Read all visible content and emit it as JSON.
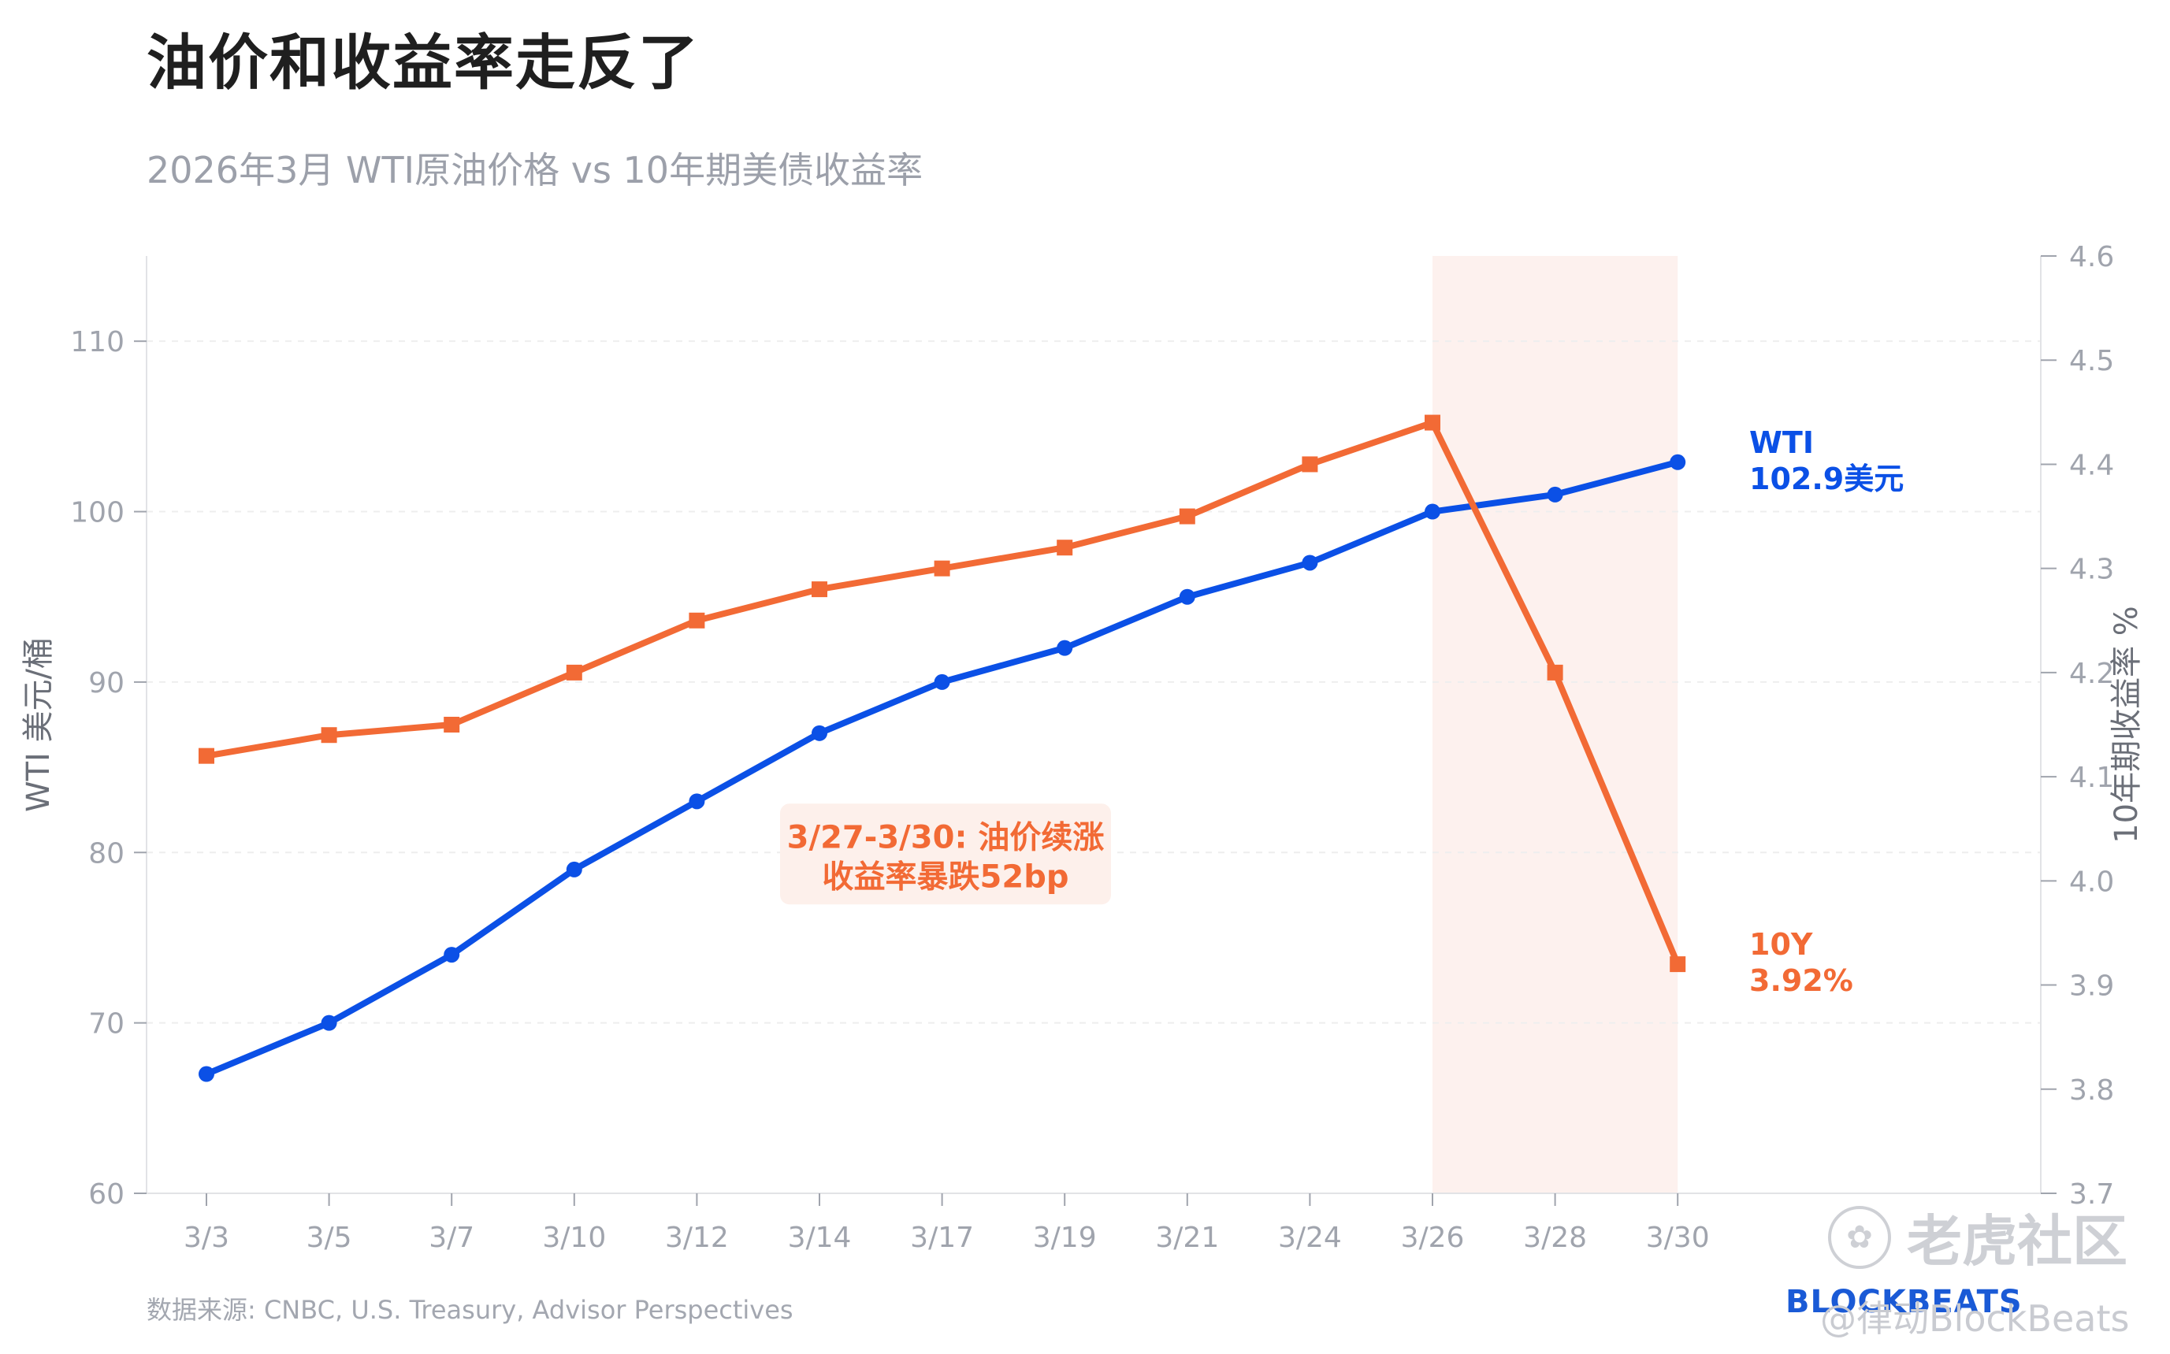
{
  "title": "油价和收益率走反了",
  "subtitle": "2026年3月 WTI原油价格 vs 10年期美债收益率",
  "source": "数据来源: CNBC, U.S. Treasury, Advisor Perspectives",
  "brand": "BLOCKBEATS",
  "watermark": {
    "text": "老虎社区",
    "handle": "@律动BlockBeats"
  },
  "colors": {
    "wti": "#0b50e6",
    "y10": "#f26a35",
    "grid": "#eeeeee",
    "axis": "#a0a4ad",
    "highlight": "#fdf1ee",
    "annotation_bg": "#fdf0eb"
  },
  "chart_data": {
    "type": "line",
    "title": "油价和收益率走反了",
    "subtitle": "2026年3月 WTI原油价格 vs 10年期美债收益率",
    "categories": [
      "3/3",
      "3/5",
      "3/7",
      "3/10",
      "3/12",
      "3/14",
      "3/17",
      "3/19",
      "3/21",
      "3/24",
      "3/26",
      "3/28",
      "3/30"
    ],
    "left_axis": {
      "label": "WTI 美元/桶",
      "range": [
        60,
        115
      ],
      "ticks": [
        60,
        70,
        80,
        90,
        100,
        110
      ]
    },
    "right_axis": {
      "label": "10年期收益率 %",
      "range": [
        3.7,
        4.6
      ],
      "ticks": [
        "3.7",
        "3.8",
        "3.9",
        "4.0",
        "4.1",
        "4.2",
        "4.3",
        "4.4",
        "4.5",
        "4.6"
      ]
    },
    "series": [
      {
        "name": "WTI",
        "axis": "left",
        "marker": "circle",
        "values": [
          67,
          70,
          74,
          79,
          83,
          87,
          90,
          92,
          95,
          97,
          100,
          101,
          102.9
        ],
        "end_label": [
          "WTI",
          "102.9美元"
        ]
      },
      {
        "name": "10Y",
        "axis": "right",
        "marker": "square",
        "values": [
          4.12,
          4.14,
          4.15,
          4.2,
          4.25,
          4.28,
          4.3,
          4.32,
          4.35,
          4.4,
          4.44,
          4.2,
          3.92
        ],
        "end_label": [
          "10Y",
          "3.92%"
        ]
      }
    ],
    "highlight": {
      "from": "3/26",
      "to": "3/30"
    },
    "annotation": {
      "lines": [
        "3/27-3/30: 油价续涨",
        "收益率暴跌52bp"
      ],
      "anchor_category": "3/14",
      "anchor_value": 80
    },
    "grid": "horizontal dashed"
  }
}
